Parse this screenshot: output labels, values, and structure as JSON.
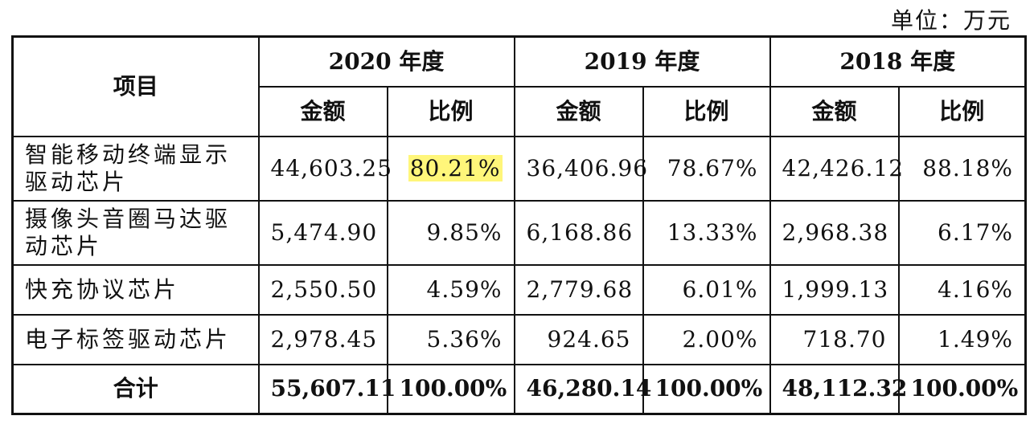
{
  "unit_label": "单位：万元",
  "header": {
    "item": "项目",
    "years": [
      "2020 年度",
      "2019 年度",
      "2018 年度"
    ],
    "amount": "金额",
    "ratio": "比例"
  },
  "rows": [
    {
      "item": "智能移动终端显示驱动芯片",
      "values": [
        "44,603.25",
        "80.21%",
        "36,406.96",
        "78.67%",
        "42,426.12",
        "88.18%"
      ]
    },
    {
      "item": "摄像头音圈马达驱动芯片",
      "values": [
        "5,474.90",
        "9.85%",
        "6,168.86",
        "13.33%",
        "2,968.38",
        "6.17%"
      ]
    },
    {
      "item": "快充协议芯片",
      "values": [
        "2,550.50",
        "4.59%",
        "2,779.68",
        "6.01%",
        "1,999.13",
        "4.16%"
      ]
    },
    {
      "item": "电子标签驱动芯片",
      "values": [
        "2,978.45",
        "5.36%",
        "924.65",
        "2.00%",
        "718.70",
        "1.49%"
      ]
    }
  ],
  "total": {
    "label": "合计",
    "values": [
      "55,607.11",
      "100.00%",
      "46,280.14",
      "100.00%",
      "48,112.32",
      "100.00%"
    ]
  },
  "highlight_color": "#fff67a"
}
